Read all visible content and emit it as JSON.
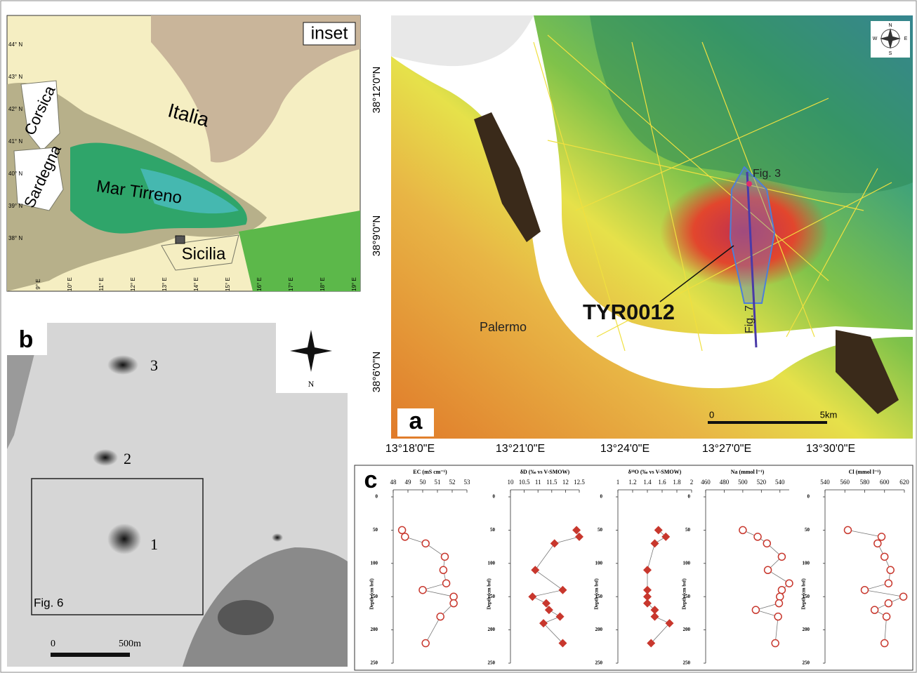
{
  "inset": {
    "title": "inset",
    "labels": [
      "Italia",
      "Corsica",
      "Sardegna",
      "Mar Tirreno",
      "Sicilia"
    ],
    "lat_labels": [
      "44° N",
      "43° N",
      "42° N",
      "41° N",
      "40° N",
      "39° N",
      "38° N"
    ],
    "lon_labels": [
      "9° E",
      "10° E",
      "11° E",
      "12° E",
      "13° E",
      "14° E",
      "15° E",
      "16° E",
      "17° E",
      "18° E",
      "19° E"
    ]
  },
  "panel_a": {
    "label": "a",
    "place": "Palermo",
    "core": "TYR0012",
    "fig3": "Fig. 3",
    "fig7": "Fig. 7",
    "scale_start": "0",
    "scale_end": "5km",
    "compass": [
      "N",
      "S",
      "E",
      "W"
    ],
    "lat_labels": [
      "38°12'0\"N",
      "38°9'0\"N",
      "38°6'0\"N"
    ],
    "lon_labels": [
      "13°18'0\"E",
      "13°21'0\"E",
      "13°24'0\"E",
      "13°27'0\"E",
      "13°30'0\"E"
    ]
  },
  "panel_b": {
    "label": "b",
    "features": [
      "3",
      "2",
      "1"
    ],
    "box": "Fig. 6",
    "scale_start": "0",
    "scale_end": "500m",
    "north": "N"
  },
  "panel_c": {
    "label": "c"
  },
  "chart_data": [
    {
      "type": "line",
      "title": "EC (mS cm⁻¹)",
      "ylabel": "Depth (cm bsf)",
      "marker": "circle",
      "color": "#c8372d",
      "depth": [
        50,
        60,
        70,
        90,
        110,
        130,
        140,
        150,
        160,
        180,
        220
      ],
      "values": [
        48.6,
        48.8,
        50.2,
        51.5,
        51.4,
        51.6,
        50.0,
        52.1,
        52.1,
        51.2,
        50.2
      ],
      "xlim": [
        48,
        53
      ],
      "xticks": [
        48,
        49,
        50,
        51,
        52,
        53
      ],
      "ylim": [
        0,
        250
      ],
      "yticks": [
        0,
        50,
        100,
        150,
        200,
        250
      ]
    },
    {
      "type": "line",
      "title": "δD (‰ vs V-SMOW)",
      "ylabel": "Depth (cm bsf)",
      "marker": "diamond",
      "color": "#c8372d",
      "depth": [
        50,
        60,
        70,
        110,
        140,
        150,
        160,
        170,
        180,
        190,
        220
      ],
      "values": [
        12.4,
        12.5,
        11.6,
        10.9,
        11.9,
        10.8,
        11.3,
        11.4,
        11.8,
        11.2,
        11.9
      ],
      "xlim": [
        10,
        12.5
      ],
      "xticks": [
        10,
        10.5,
        11,
        11.5,
        12,
        12.5
      ],
      "ylim": [
        0,
        250
      ],
      "yticks": [
        0,
        50,
        100,
        150,
        200,
        250
      ]
    },
    {
      "type": "line",
      "title": "δ¹⁸O (‰ vs V-SMOW)",
      "ylabel": "Depth (cm bsf)",
      "marker": "diamond",
      "color": "#c8372d",
      "depth": [
        50,
        60,
        70,
        110,
        140,
        150,
        160,
        170,
        180,
        190,
        220
      ],
      "values": [
        1.55,
        1.65,
        1.5,
        1.4,
        1.4,
        1.4,
        1.4,
        1.5,
        1.5,
        1.7,
        1.45
      ],
      "xlim": [
        1,
        2
      ],
      "xticks": [
        1,
        1.2,
        1.4,
        1.6,
        1.8,
        2
      ],
      "ylim": [
        0,
        250
      ],
      "yticks": [
        0,
        50,
        100,
        150,
        200,
        250
      ]
    },
    {
      "type": "line",
      "title": "Na (mmol l⁻¹)",
      "ylabel": "Depth (cm bsf)",
      "marker": "circle",
      "color": "#c8372d",
      "depth": [
        50,
        60,
        70,
        90,
        110,
        130,
        140,
        150,
        160,
        170,
        180,
        220
      ],
      "values": [
        500,
        516,
        526,
        542,
        527,
        550,
        542,
        540,
        539,
        514,
        538,
        535
      ],
      "xlim": [
        460,
        550
      ],
      "xticks": [
        460,
        480,
        500,
        520,
        540
      ],
      "ylim": [
        0,
        250
      ],
      "yticks": [
        0,
        50,
        100,
        150,
        200,
        250
      ]
    },
    {
      "type": "line",
      "title": "Cl (mmol l⁻¹)",
      "ylabel": "Depth (cm bsf)",
      "marker": "circle",
      "color": "#c8372d",
      "depth": [
        50,
        60,
        70,
        90,
        110,
        130,
        140,
        150,
        160,
        170,
        180,
        220
      ],
      "values": [
        563,
        597,
        593,
        600,
        606,
        604,
        580,
        619,
        604,
        590,
        602,
        600
      ],
      "xlim": [
        540,
        620
      ],
      "xticks": [
        540,
        560,
        580,
        600,
        620
      ],
      "ylim": [
        0,
        250
      ],
      "yticks": [
        0,
        50,
        100,
        150,
        200,
        250
      ]
    }
  ]
}
